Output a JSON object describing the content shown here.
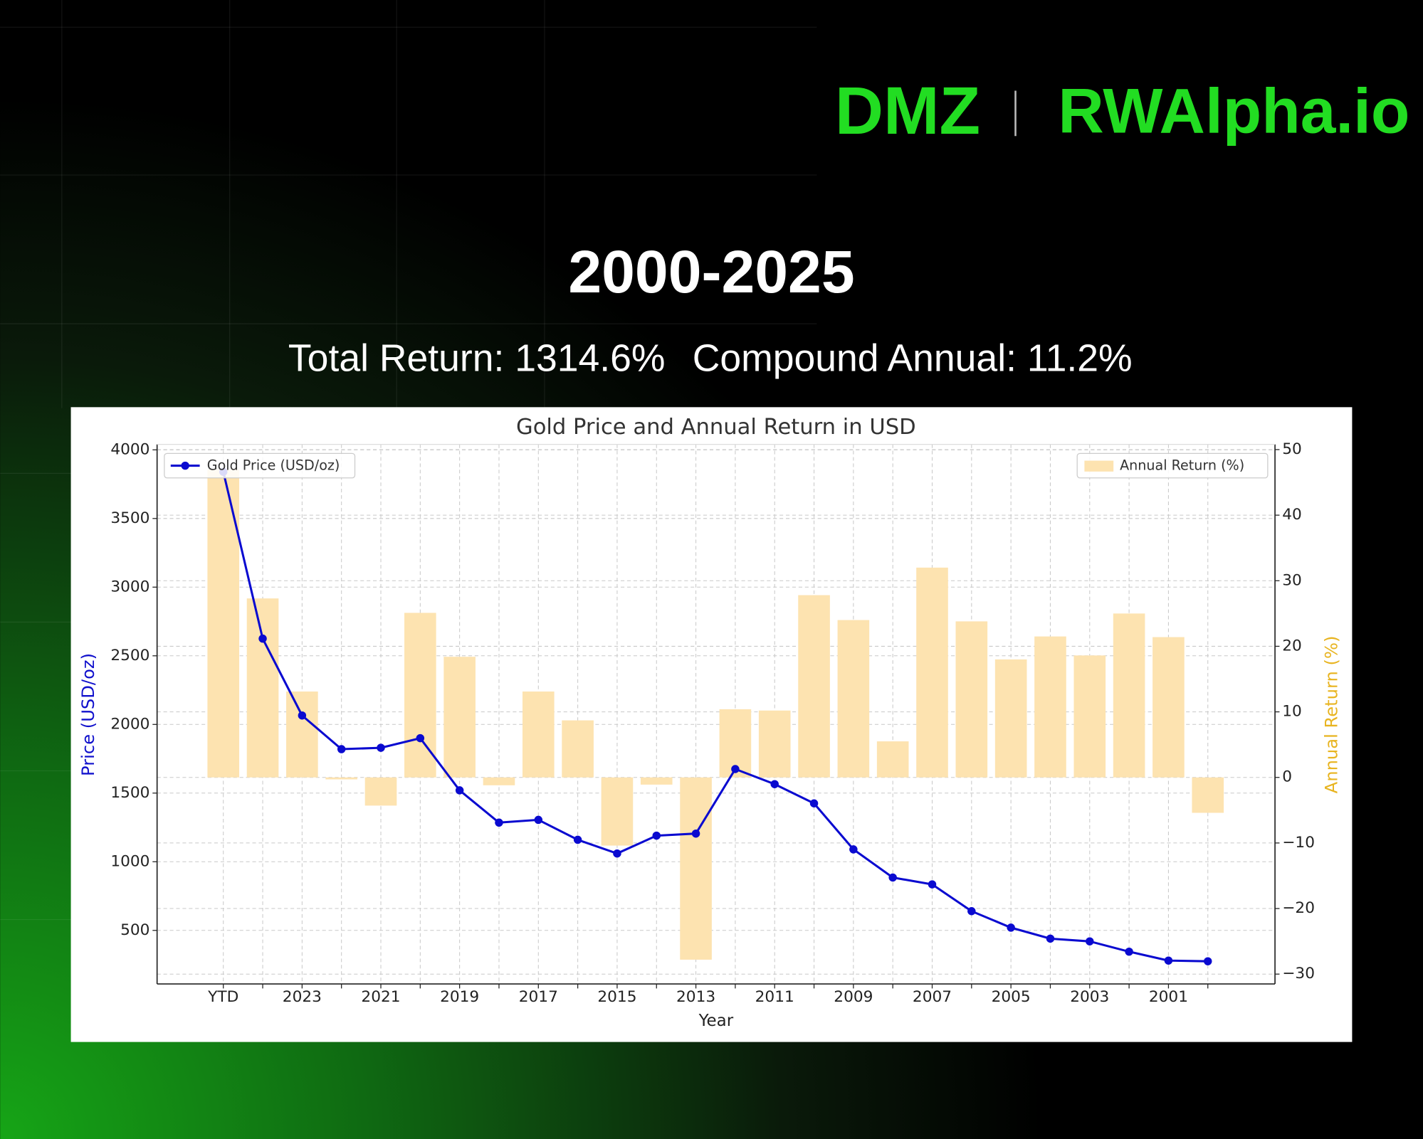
{
  "header": {
    "logo_left": "DMZ",
    "logo_right": "RWAlpha.io"
  },
  "title": "2000-2025",
  "subtitle": {
    "total_return": "Total Return: 1314.6%",
    "compound_annual": "Compound Annual: 11.2%"
  },
  "chart_data": {
    "type": "combo",
    "title": "Gold Price and Annual Return in USD",
    "xlabel": "Year",
    "ylabel": "Price (USD/oz)",
    "y2label": "Annual Return (%)",
    "categories": [
      "YTD",
      null,
      "2023",
      null,
      "2021",
      null,
      "2019",
      null,
      "2017",
      null,
      "2015",
      null,
      "2013",
      null,
      "2011",
      null,
      "2009",
      null,
      "2007",
      null,
      "2005",
      null,
      "2003",
      null,
      "2001",
      null
    ],
    "series": [
      {
        "name": "Annual Return (%)",
        "type": "bar",
        "axis": "y2",
        "color": "#fde3b0",
        "legend": "upper right",
        "values": [
          47,
          27.3,
          13.1,
          -0.3,
          -4.3,
          25.1,
          18.4,
          -1.2,
          13.1,
          8.7,
          -10.4,
          -1.1,
          -27.8,
          10.4,
          10.2,
          27.8,
          24.0,
          5.5,
          32.0,
          23.8,
          18.0,
          21.5,
          18.6,
          25.0,
          21.4,
          -5.4
        ]
      },
      {
        "name": "Gold Price (USD/oz)",
        "type": "line",
        "color": "#0a0ad0",
        "legend": "upper left",
        "values": [
          3840,
          2625,
          2065,
          1820,
          1830,
          1900,
          1520,
          1285,
          1305,
          1160,
          1060,
          1190,
          1205,
          1675,
          1565,
          1425,
          1090,
          885,
          835,
          640,
          520,
          440,
          420,
          345,
          280,
          275
        ]
      }
    ],
    "ylim": [
      110,
      4040
    ],
    "yticks": [
      500,
      1000,
      1500,
      2000,
      2500,
      3000,
      3500,
      4000
    ],
    "y2lim": [
      -31.5,
      50.8
    ],
    "y2ticks": [
      {
        "value": -30,
        "label": "−30"
      },
      {
        "value": -20,
        "label": "−20"
      },
      {
        "value": -10,
        "label": "−10"
      },
      0,
      10,
      20,
      30,
      40,
      50
    ],
    "grid": true
  }
}
